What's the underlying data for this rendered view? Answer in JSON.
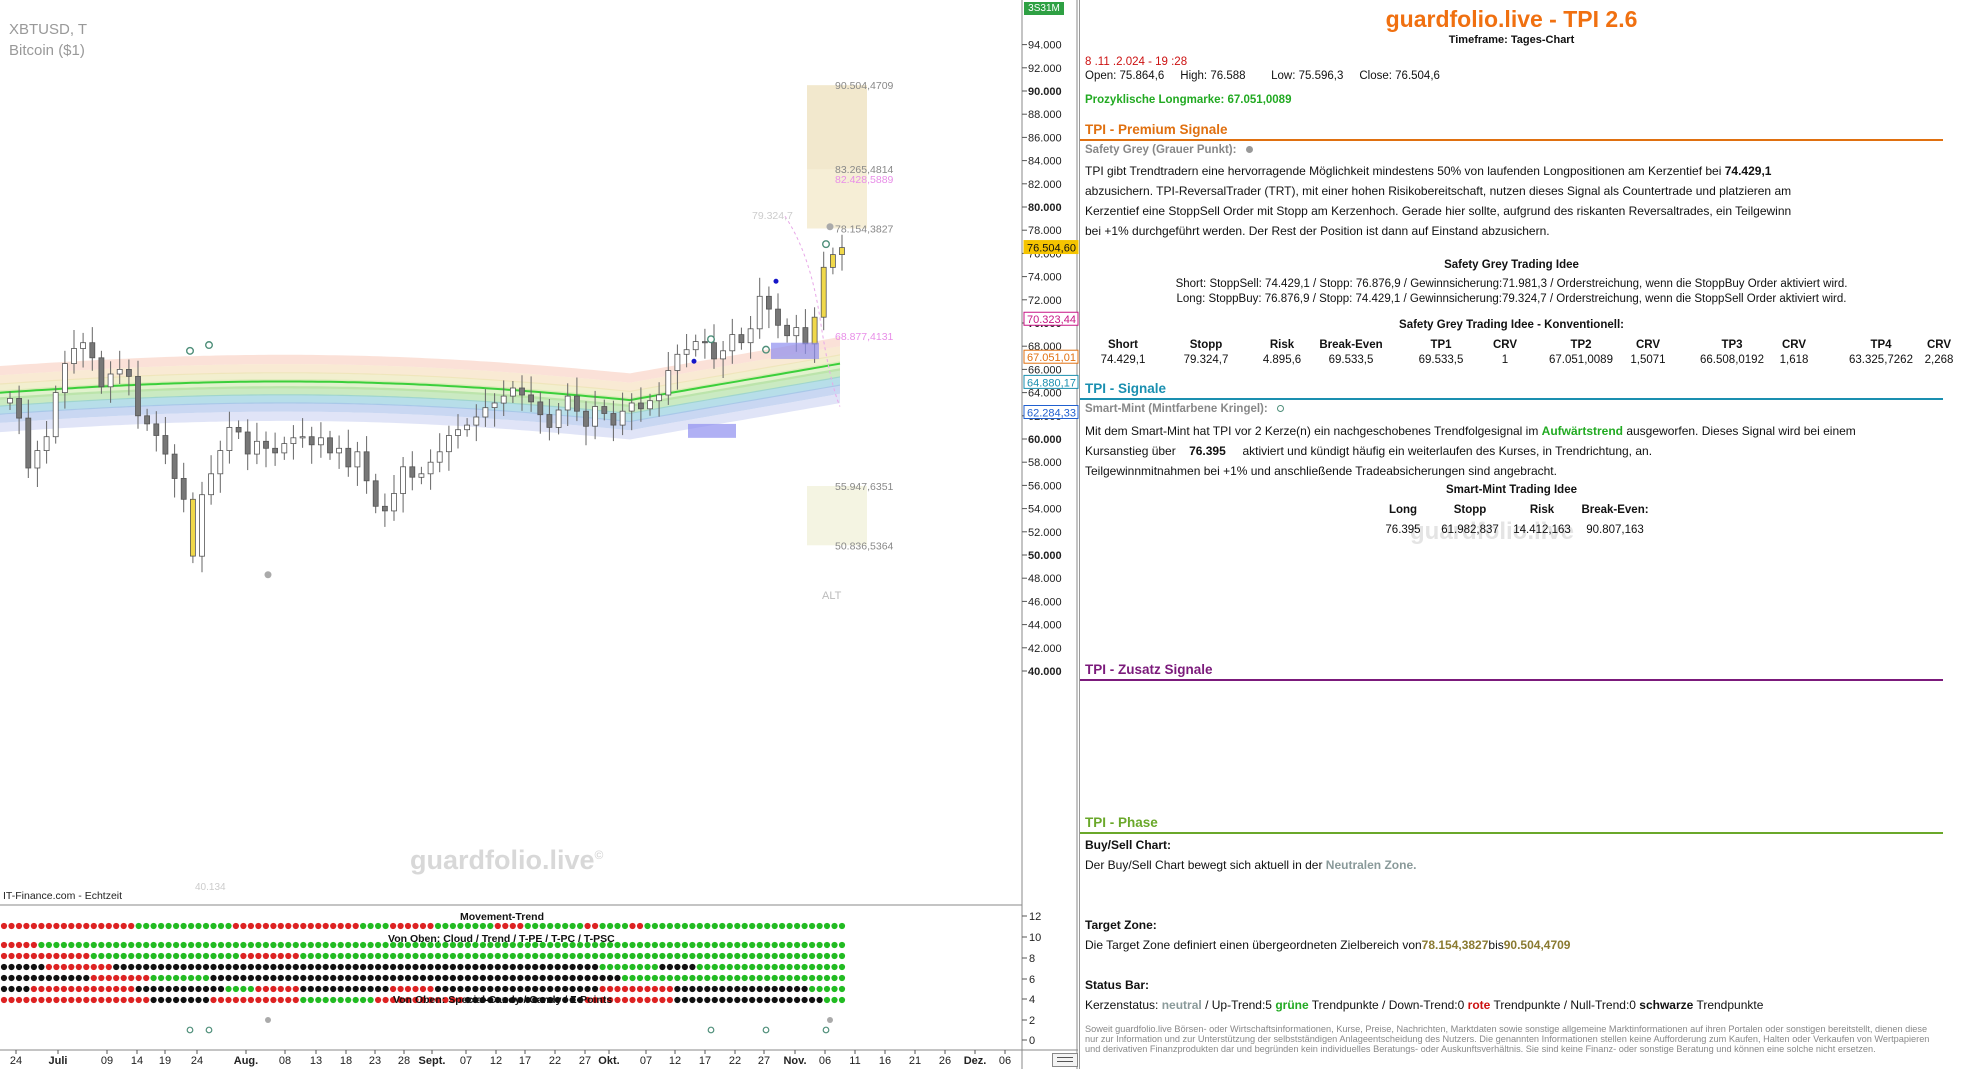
{
  "chart": {
    "symbol": "XBTUSD, T",
    "name": "Bitcoin ($1)",
    "source": "IT-Finance.com - Echtzeit",
    "watermark": "guardfolio.live",
    "watermark_mark": "©",
    "top_badge": "3S31M",
    "low_label": "40.134",
    "price_ticks": [
      "94.000",
      "92.000",
      "90.000",
      "88.000",
      "86.000",
      "84.000",
      "82.000",
      "80.000",
      "78.000",
      "76.000",
      "74.000",
      "72.000",
      "70.000",
      "68.000",
      "66.000",
      "64.000",
      "62.000",
      "60.000",
      "58.000",
      "56.000",
      "54.000",
      "52.000",
      "50.000",
      "48.000",
      "46.000",
      "44.000",
      "42.000",
      "40.000"
    ],
    "price_labels": [
      {
        "text": "76.504,60",
        "color": "#f5c400",
        "value": 76504.6
      },
      {
        "text": "70.323,44",
        "color": "#c71585",
        "value": 70323.44
      },
      {
        "text": "67.051,01",
        "color": "#e07010",
        "value": 67051.01
      },
      {
        "text": "64.880,17",
        "color": "#1a8fb0",
        "value": 64880.17
      },
      {
        "text": "62.284,33",
        "color": "#2060d0",
        "value": 62284.33
      }
    ],
    "zone_labels": [
      {
        "text": "90.504,4709",
        "color": "#888888",
        "value": 90504.4709
      },
      {
        "text": "83.265,4814",
        "color": "#888888",
        "value": 83265.4814
      },
      {
        "text": "82.428,5889",
        "color": "#e88ee8",
        "value": 82428.5889
      },
      {
        "text": "78.154,3827",
        "color": "#888888",
        "value": 78154.3827
      },
      {
        "text": "68.877,4131",
        "color": "#e88ee8",
        "value": 68877.4131
      },
      {
        "text": "55.947,6351",
        "color": "#888888",
        "value": 55947.6351
      },
      {
        "text": "50.836,5364",
        "color": "#888888",
        "value": 50836.5364
      },
      {
        "text": "79.324,7",
        "color": "#cccccc",
        "value": 79324.7
      }
    ],
    "alt_label": "ALT",
    "date_labels": [
      "24",
      "Juli",
      "09",
      "14",
      "19",
      "24",
      "Aug.",
      "08",
      "13",
      "18",
      "23",
      "28",
      "Sept.",
      "07",
      "12",
      "17",
      "22",
      "27",
      "Okt.",
      "07",
      "12",
      "17",
      "22",
      "27",
      "Nov.",
      "06",
      "11",
      "16",
      "21",
      "26",
      "Dez.",
      "06"
    ],
    "indicator": {
      "title_movement": "Movement-Trend",
      "title_cloud": "Von Oben: Cloud / Trend / T-PE / T-PC / T-PSC",
      "title_candy": "Von Oben: Special-Candy / Candy / Z-Points",
      "ticks": [
        "12",
        "10",
        "8",
        "6",
        "4",
        "2",
        "0"
      ]
    }
  },
  "info": {
    "brand": "guardfolio.live - TPI 2.6",
    "timeframe": "Timeframe: Tages-Chart",
    "datetime": "8 .11 .2.024 - 19 :28",
    "ohlc": {
      "open_label": "Open:",
      "open": "75.864,6",
      "high_label": "High:",
      "high": "76.588",
      "low_label": "Low:",
      "low": "75.596,3",
      "close_label": "Close:",
      "close": "76.504,6"
    },
    "longmarke": "Prozyklische Longmarke: 67.051,0089",
    "premium": {
      "title": "TPI - Premium Signale",
      "safety_label": "Safety Grey (Grauer Punkt):",
      "p1a": "TPI gibt Trendtradern eine hervorragende Möglichkeit mindestens 50% von laufenden Longpositionen am Kerzentief bei ",
      "p1b": "74.429,1",
      "p2": "abzusichern. TPI-ReversalTrader (TRT), mit einer hohen Risikobereitschaft, nutzen dieses Signal als Countertrade und platzieren am",
      "p3": "Kerzentief eine StoppSell Order mit Stopp am Kerzenhoch. Gerade hier sollte, aufgrund des riskanten Reversaltrades, ein Teilgewinn",
      "p4": "bei +1% durchgeführt werden. Der Rest der Position ist dann auf Einstand abzusichern.",
      "idea_title": "Safety Grey Trading Idee",
      "short_line": "Short: StoppSell:  74.429,1 / Stopp: 76.876,9  / Gewinnsicherung:71.981,3  / Orderstreichung, wenn die StoppBuy Order aktiviert wird.",
      "long_line": "Long: StoppBuy:  76.876,9 / Stopp: 74.429,1  / Gewinnsicherung:79.324,7  / Orderstreichung, wenn die StoppSell Order aktiviert wird.",
      "konv_title": "Safety Grey Trading Idee - Konventionell:",
      "konv_headers": [
        "Short",
        "Stopp",
        "Risk",
        "Break-Even",
        "TP1",
        "CRV",
        "TP2",
        "CRV",
        "TP3",
        "CRV",
        "TP4",
        "CRV"
      ],
      "konv_values": [
        "74.429,1",
        "79.324,7",
        "4.895,6",
        "69.533,5",
        "69.533,5",
        "1",
        "67.051,0089",
        "1,5071",
        "66.508,0192",
        "1,618",
        "63.325,7262",
        "2,268"
      ]
    },
    "signale": {
      "title": "TPI - Signale",
      "mint_label": "Smart-Mint (Mintfarbene Kringel):",
      "p1a": "Mit dem Smart-Mint hat TPI vor 2  Kerze(n) ein nachgeschobenes Trendfolgesignal im ",
      "p1b": "Aufwärtstrend",
      "p1c": " ausgeworfen. Dieses Signal wird bei einem",
      "p2a": "Kursanstieg über ",
      "p2b": "76.395",
      "p2c": "aktiviert und kündigt häufig ein weiterlaufen des Kurses, in Trendrichtung, an.",
      "p3": "Teilgewinnmitnahmen bei +1% und anschließende Tradeabsicherungen sind angebracht.",
      "idea_title": "Smart-Mint Trading Idee",
      "headers": [
        "Long",
        "Stopp",
        "Risk",
        "Break-Even:"
      ],
      "values": [
        "76.395",
        "61.982,837",
        "14.412,163",
        "90.807,163"
      ],
      "watermark": "guardfolio.live"
    },
    "zusatz": {
      "title": "TPI - Zusatz Signale"
    },
    "phase": {
      "title": "TPI - Phase",
      "buysell_label": "Buy/Sell Chart:",
      "buysell_text": "Der Buy/Sell Chart bewegt sich aktuell in der ",
      "buysell_zone": "Neutralen Zone.",
      "target_label": "Target Zone:",
      "target_text": "Die Target Zone definiert einen übergeordneten Zielbereich von",
      "target_from": "78.154,3827",
      "target_mid": "bis",
      "target_to": "90.504,4709",
      "status_label": "Status Bar:",
      "status_a": "Kerzenstatus: ",
      "status_neutral": "neutral",
      "status_b": " / Up-Trend:5 ",
      "status_green": "grüne",
      "status_c": " Trendpunkte  / Down-Trend:0 ",
      "status_red": "rote",
      "status_d": " Trendpunkte  / Null-Trend:0 ",
      "status_black": "schwarze",
      "status_e": " Trendpunkte"
    },
    "disclaimer": "Soweit guardfolio.live Börsen- oder Wirtschaftsinformationen, Kurse, Preise, Nachrichten, Marktdaten sowie sonstige allgemeine Marktinformationen auf ihren Portalen oder sonstigen bereitstellt, dienen diese nur zur Information und zur Unterstützung der selbstständigen Anlageentscheidung des Nutzers. Die genannten Informationen stellen keine Aufforderung zum Kaufen, Halten oder Verkaufen von Wertpapieren und derivativen Finanzprodukten dar und begründen kein individuelles Beratungs- oder Auskunftsverhältnis. Sie sind keine Finanz- oder sonstige Beratung und können eine solche nicht ersetzen."
  },
  "colors": {
    "brand": "#f07010",
    "premium": "#e07010",
    "signale": "#1a8fb0",
    "zusatz": "#7b1a7b",
    "phase": "#6aa82a",
    "green": "#22aa22",
    "red": "#cc1111"
  }
}
